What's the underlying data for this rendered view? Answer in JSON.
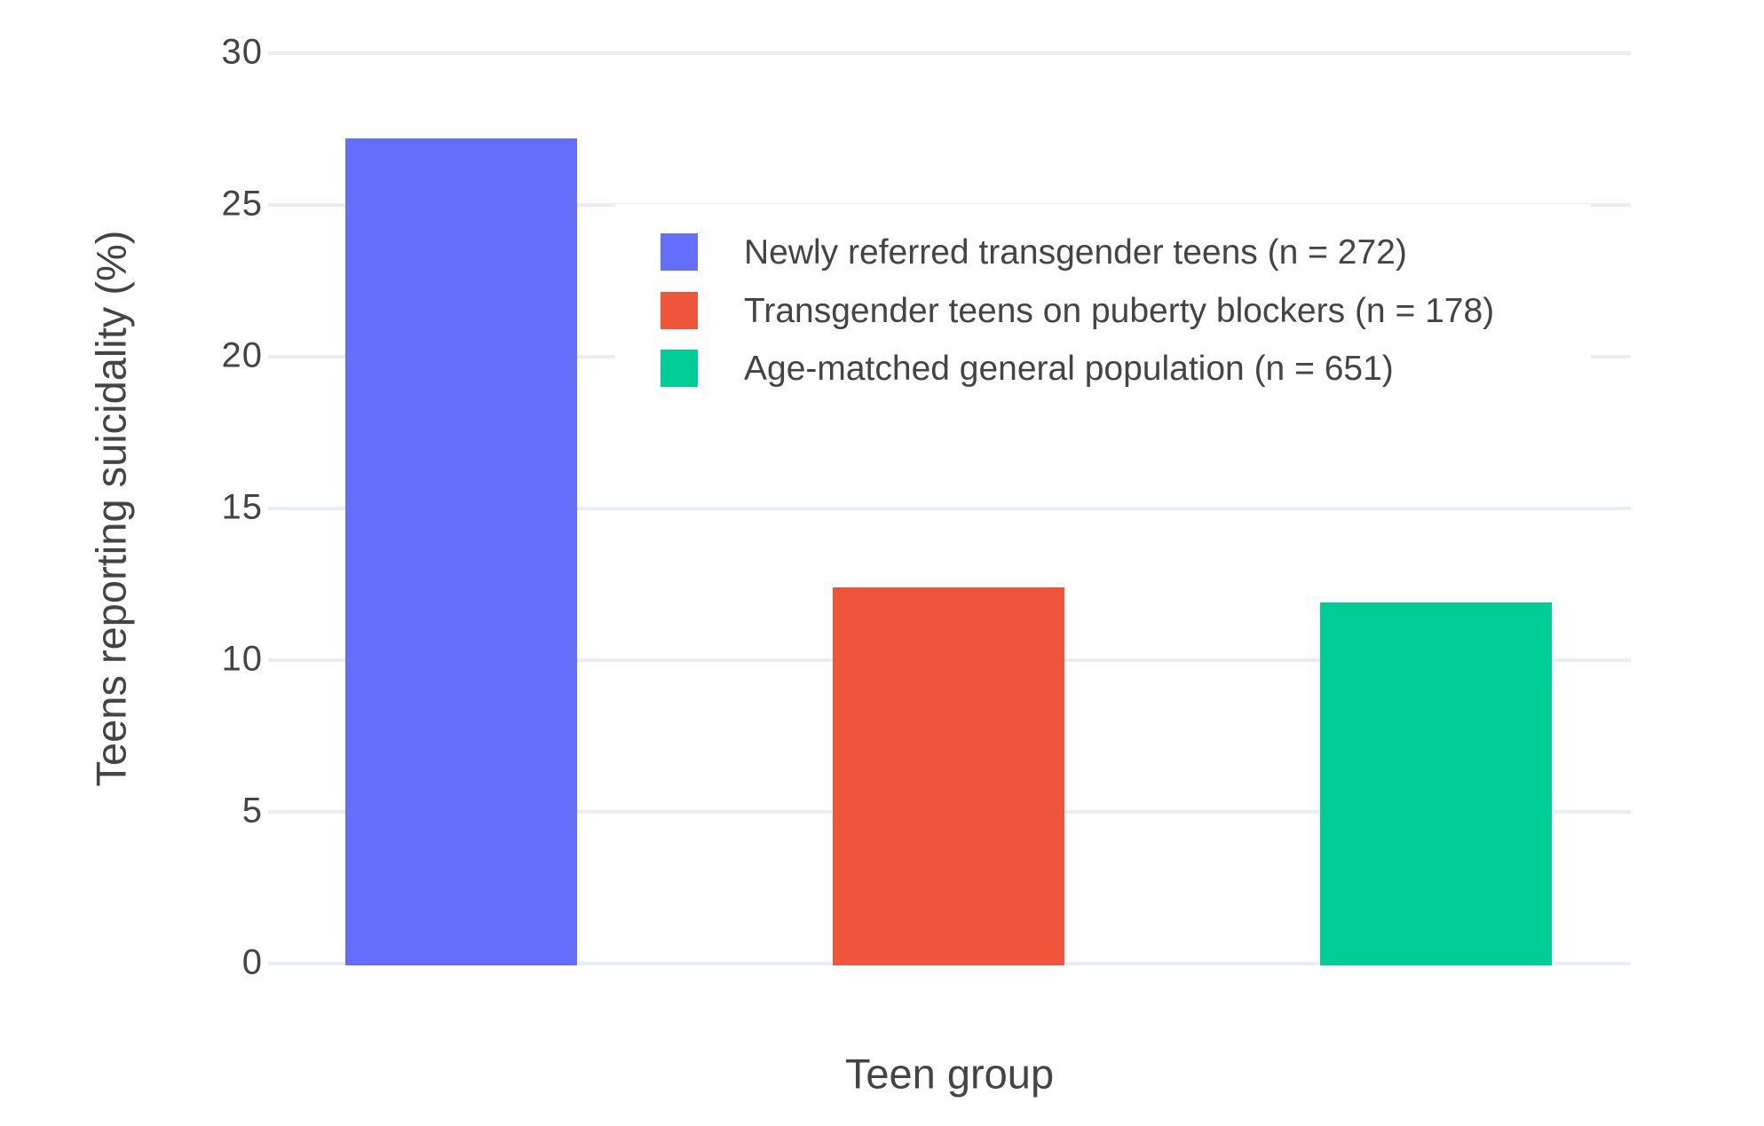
{
  "chart_data": {
    "type": "bar",
    "title": "",
    "xlabel": "Teen group",
    "ylabel": "Teens reporting suicidality (%)",
    "ylim": [
      0,
      30
    ],
    "yticks": [
      0,
      5,
      10,
      15,
      20,
      25,
      30
    ],
    "grid": true,
    "legend_position": "inside-top-right",
    "series": [
      {
        "name": "Newly referred transgender teens (n = 272)",
        "value": 27.2,
        "color": "#636EFA"
      },
      {
        "name": "Transgender teens on puberty blockers (n = 178)",
        "value": 12.4,
        "color": "#EF553B"
      },
      {
        "name": "Age-matched general population (n = 651)",
        "value": 11.9,
        "color": "#00CC96"
      }
    ],
    "colors": {
      "background": "#FFFFFF",
      "grid": "#E8EDF6",
      "text": "#444444"
    }
  }
}
